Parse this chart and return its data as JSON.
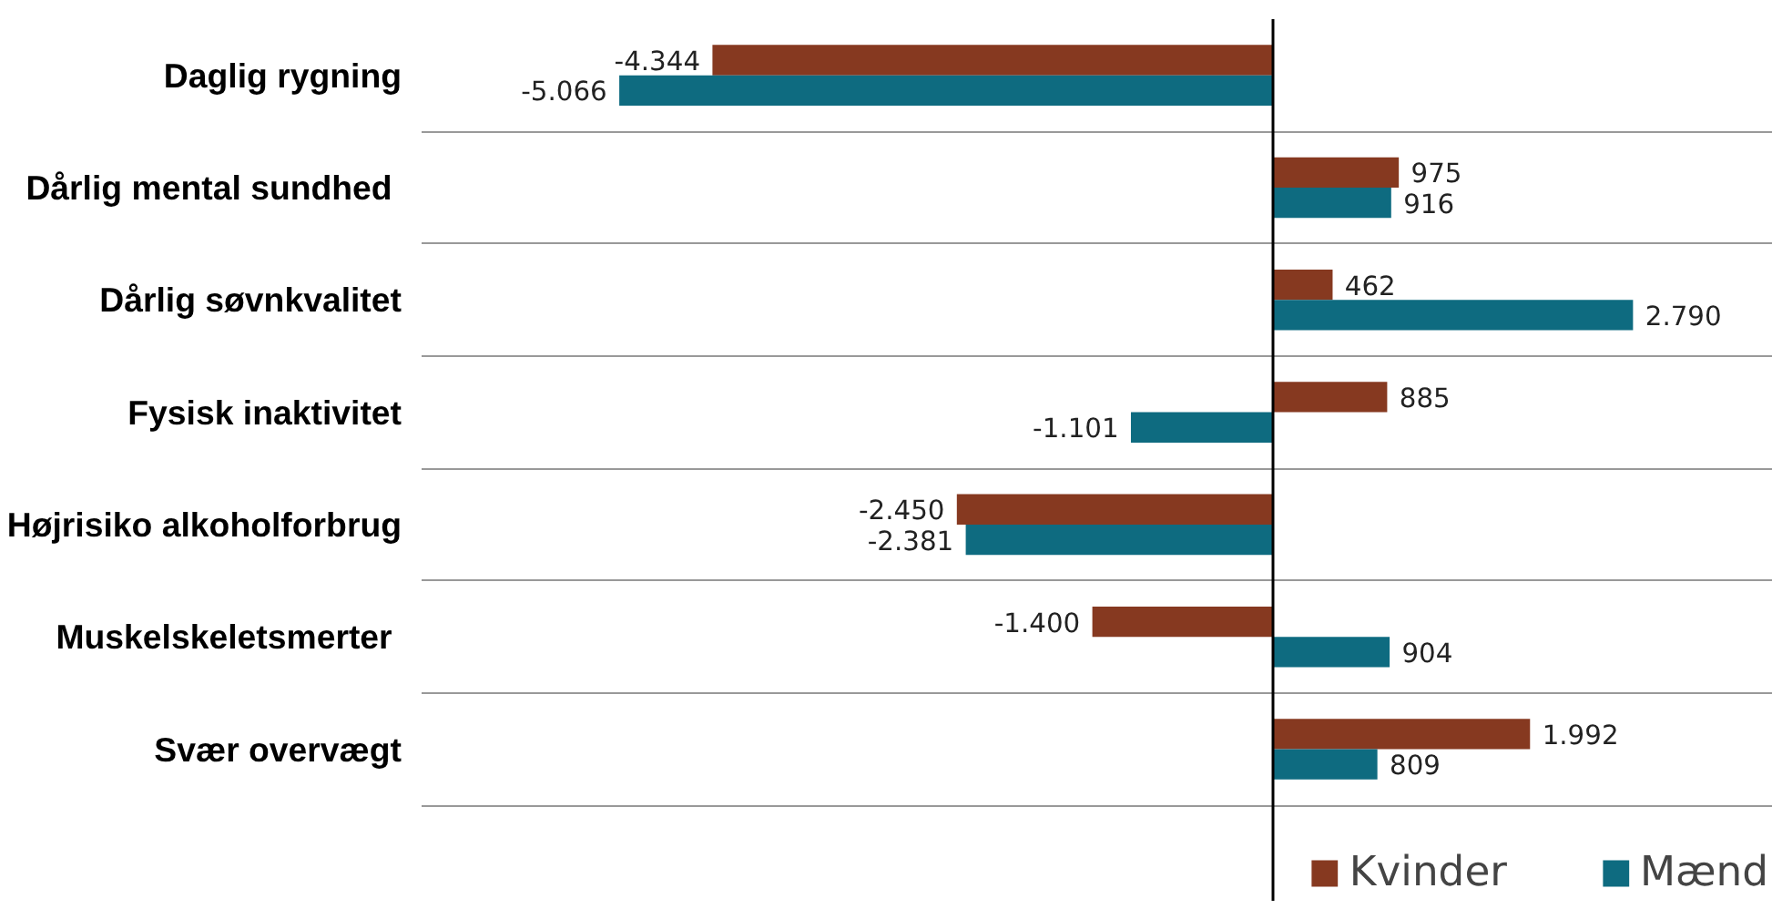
{
  "chart_data": {
    "type": "bar",
    "orientation": "horizontal",
    "categories": [
      "Daglig rygning",
      "Dårlig mental sundhed ",
      "Dårlig søvnkvalitet",
      "Fysisk inaktivitet",
      "Højrisiko alkoholforbrug",
      "Muskelskeletsmerter ",
      "Svær overvægt"
    ],
    "series": [
      {
        "name": "Kvinder",
        "color": "#863920",
        "values": [
          -4344,
          975,
          462,
          885,
          -2450,
          -1400,
          1992
        ],
        "value_labels": [
          "-4.344",
          "975",
          "462",
          "885",
          "-2.450",
          "-1.400",
          "1.992"
        ]
      },
      {
        "name": "Mænd",
        "color": "#0e6b80",
        "values": [
          -5066,
          916,
          2790,
          -1101,
          -2381,
          904,
          809
        ],
        "value_labels": [
          "-5.066",
          "916",
          "2.790",
          "-1.101",
          "-2.381",
          "904",
          "809"
        ]
      }
    ],
    "grid": "y",
    "legend": "bottom right"
  }
}
